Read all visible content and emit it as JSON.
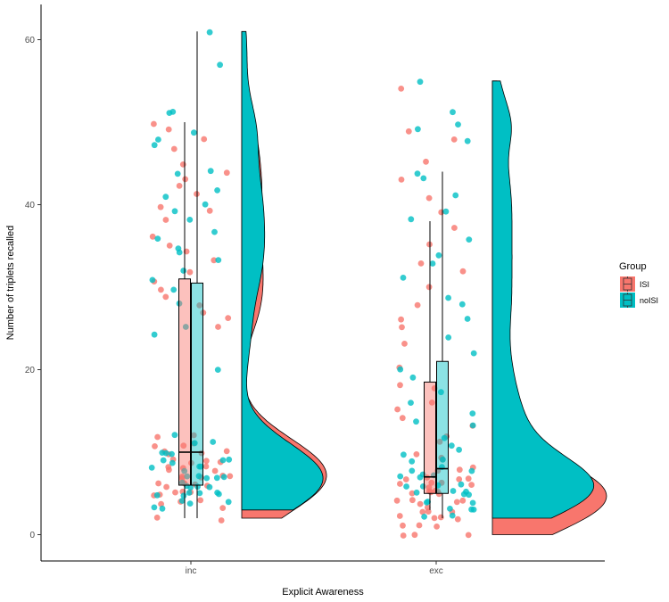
{
  "chart_data": {
    "type": "raincloud",
    "xlabel": "Explicit Awareness",
    "ylabel": "Number of triplets recalled",
    "categories": [
      "inc",
      "exc"
    ],
    "ylim": [
      -3,
      64
    ],
    "yticks": [
      0,
      20,
      40,
      60
    ],
    "grid": false,
    "legend": {
      "title": "Group",
      "position": "right",
      "entries": [
        "ISI",
        "noISI"
      ]
    },
    "colors": {
      "ISI": "#F8766D",
      "noISI": "#00BFC4"
    },
    "series": [
      {
        "name": "ISI",
        "box": {
          "inc": {
            "min": 2,
            "q1": 6,
            "median": 10,
            "q3": 31,
            "max": 50
          },
          "exc": {
            "min": 3,
            "q1": 5,
            "median": 7,
            "q3": 18.5,
            "max": 38
          }
        },
        "density_range": {
          "inc": [
            2,
            61
          ],
          "exc": [
            0,
            55
          ]
        }
      },
      {
        "name": "noISI",
        "box": {
          "inc": {
            "min": 2,
            "q1": 6,
            "median": 10,
            "q3": 30.5,
            "max": 61
          },
          "exc": {
            "min": 2,
            "q1": 5,
            "median": 8,
            "q3": 21,
            "max": 44
          }
        },
        "density_range": {
          "inc": [
            3,
            61
          ],
          "exc": [
            2,
            55
          ]
        }
      }
    ],
    "points": {
      "ISI": {
        "inc": [
          2,
          2,
          3,
          4,
          4,
          4,
          5,
          5,
          5,
          5,
          5,
          6,
          6,
          6,
          6,
          6,
          6,
          7,
          7,
          7,
          7,
          7,
          8,
          8,
          8,
          8,
          8,
          9,
          9,
          9,
          9,
          10,
          10,
          10,
          10,
          11,
          11,
          11,
          12,
          12,
          25,
          26,
          27,
          28,
          29,
          30,
          31,
          32,
          33,
          34,
          35,
          36,
          38,
          39,
          40,
          41,
          42,
          43,
          44,
          45,
          47,
          48,
          49,
          50
        ],
        "exc": [
          0,
          0,
          0,
          1,
          1,
          1,
          2,
          2,
          2,
          2,
          3,
          3,
          3,
          3,
          4,
          4,
          4,
          4,
          4,
          5,
          5,
          5,
          5,
          5,
          5,
          6,
          6,
          6,
          6,
          6,
          7,
          7,
          7,
          7,
          8,
          8,
          8,
          9,
          9,
          10,
          11,
          12,
          13,
          14,
          15,
          16,
          18,
          18,
          20,
          23,
          25,
          26,
          28,
          30,
          32,
          33,
          35,
          37,
          39,
          41,
          43,
          45,
          48,
          49,
          54
        ]
      },
      "noISI": {
        "inc": [
          3,
          3,
          4,
          4,
          4,
          5,
          5,
          5,
          5,
          5,
          5,
          6,
          6,
          6,
          6,
          6,
          7,
          7,
          7,
          7,
          7,
          8,
          8,
          8,
          8,
          9,
          9,
          9,
          9,
          10,
          10,
          10,
          11,
          11,
          12,
          20,
          24,
          25,
          28,
          30,
          31,
          32,
          33,
          34,
          35,
          36,
          37,
          38,
          39,
          40,
          41,
          42,
          44,
          44,
          47,
          48,
          49,
          51,
          51,
          57,
          61
        ],
        "exc": [
          2,
          2,
          3,
          3,
          3,
          4,
          4,
          4,
          5,
          5,
          5,
          5,
          5,
          6,
          6,
          6,
          6,
          7,
          7,
          7,
          7,
          8,
          8,
          8,
          9,
          9,
          10,
          10,
          11,
          12,
          13,
          14,
          15,
          16,
          17,
          19,
          20,
          22,
          24,
          26,
          28,
          29,
          31,
          33,
          34,
          36,
          38,
          39,
          41,
          43,
          44,
          48,
          49,
          50,
          51,
          55
        ]
      }
    }
  }
}
